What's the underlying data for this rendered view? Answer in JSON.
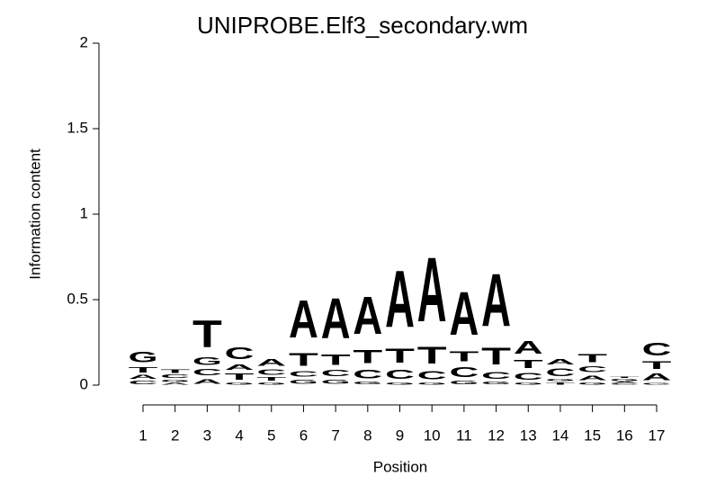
{
  "chart_data": {
    "type": "logo",
    "title": "UNIPROBE.Elf3_secondary.wm",
    "xlabel": "Position",
    "ylabel": "Information content",
    "categories": [
      "1",
      "2",
      "3",
      "4",
      "5",
      "6",
      "7",
      "8",
      "9",
      "10",
      "11",
      "12",
      "13",
      "14",
      "15",
      "16",
      "17"
    ],
    "ylim": [
      0,
      2
    ],
    "yticks": [
      0,
      0.5,
      1,
      1.5,
      2
    ],
    "colors": {
      "A": "#00ee00",
      "C": "#0000ff",
      "G": "#ffa500",
      "T": "#ff0000"
    },
    "stacks": [
      {
        "letters": [
          "C",
          "A",
          "T",
          "G"
        ],
        "heights": [
          0.03,
          0.035,
          0.05,
          0.1
        ]
      },
      {
        "letters": [
          "A",
          "G",
          "C",
          "T"
        ],
        "heights": [
          0.015,
          0.02,
          0.03,
          0.03
        ]
      },
      {
        "letters": [
          "A",
          "C",
          "G",
          "T"
        ],
        "heights": [
          0.045,
          0.06,
          0.07,
          0.25
        ]
      },
      {
        "letters": [
          "G",
          "T",
          "A",
          "C"
        ],
        "heights": [
          0.02,
          0.06,
          0.05,
          0.11
        ]
      },
      {
        "letters": [
          "G",
          "T",
          "C",
          "A"
        ],
        "heights": [
          0.02,
          0.03,
          0.05,
          0.065
        ]
      },
      {
        "letters": [
          "G",
          "C",
          "T",
          "A"
        ],
        "heights": [
          0.04,
          0.05,
          0.12,
          0.35
        ]
      },
      {
        "letters": [
          "G",
          "C",
          "T",
          "A"
        ],
        "heights": [
          0.04,
          0.06,
          0.1,
          0.38
        ]
      },
      {
        "letters": [
          "G",
          "C",
          "T",
          "A"
        ],
        "heights": [
          0.025,
          0.08,
          0.125,
          0.35
        ]
      },
      {
        "letters": [
          "G",
          "C",
          "T",
          "A"
        ],
        "heights": [
          0.02,
          0.085,
          0.13,
          0.53
        ]
      },
      {
        "letters": [
          "G",
          "C",
          "T",
          "A"
        ],
        "heights": [
          0.02,
          0.075,
          0.16,
          0.6
        ]
      },
      {
        "letters": [
          "G",
          "C",
          "T",
          "A"
        ],
        "heights": [
          0.03,
          0.09,
          0.095,
          0.405
        ]
      },
      {
        "letters": [
          "G",
          "C",
          "T",
          "A"
        ],
        "heights": [
          0.025,
          0.065,
          0.16,
          0.49
        ]
      },
      {
        "letters": [
          "G",
          "C",
          "T",
          "A"
        ],
        "heights": [
          0.02,
          0.065,
          0.075,
          0.12
        ]
      },
      {
        "letters": [
          "T",
          "G",
          "C",
          "A"
        ],
        "heights": [
          0.02,
          0.02,
          0.07,
          0.05
        ]
      },
      {
        "letters": [
          "G",
          "A",
          "C",
          "T"
        ],
        "heights": [
          0.02,
          0.045,
          0.055,
          0.075
        ]
      },
      {
        "letters": [
          "C",
          "A",
          "G",
          "T"
        ],
        "heights": [
          0.01,
          0.01,
          0.02,
          0.01
        ]
      },
      {
        "letters": [
          "G",
          "A",
          "T",
          "C"
        ],
        "heights": [
          0.015,
          0.065,
          0.07,
          0.12
        ]
      }
    ]
  }
}
